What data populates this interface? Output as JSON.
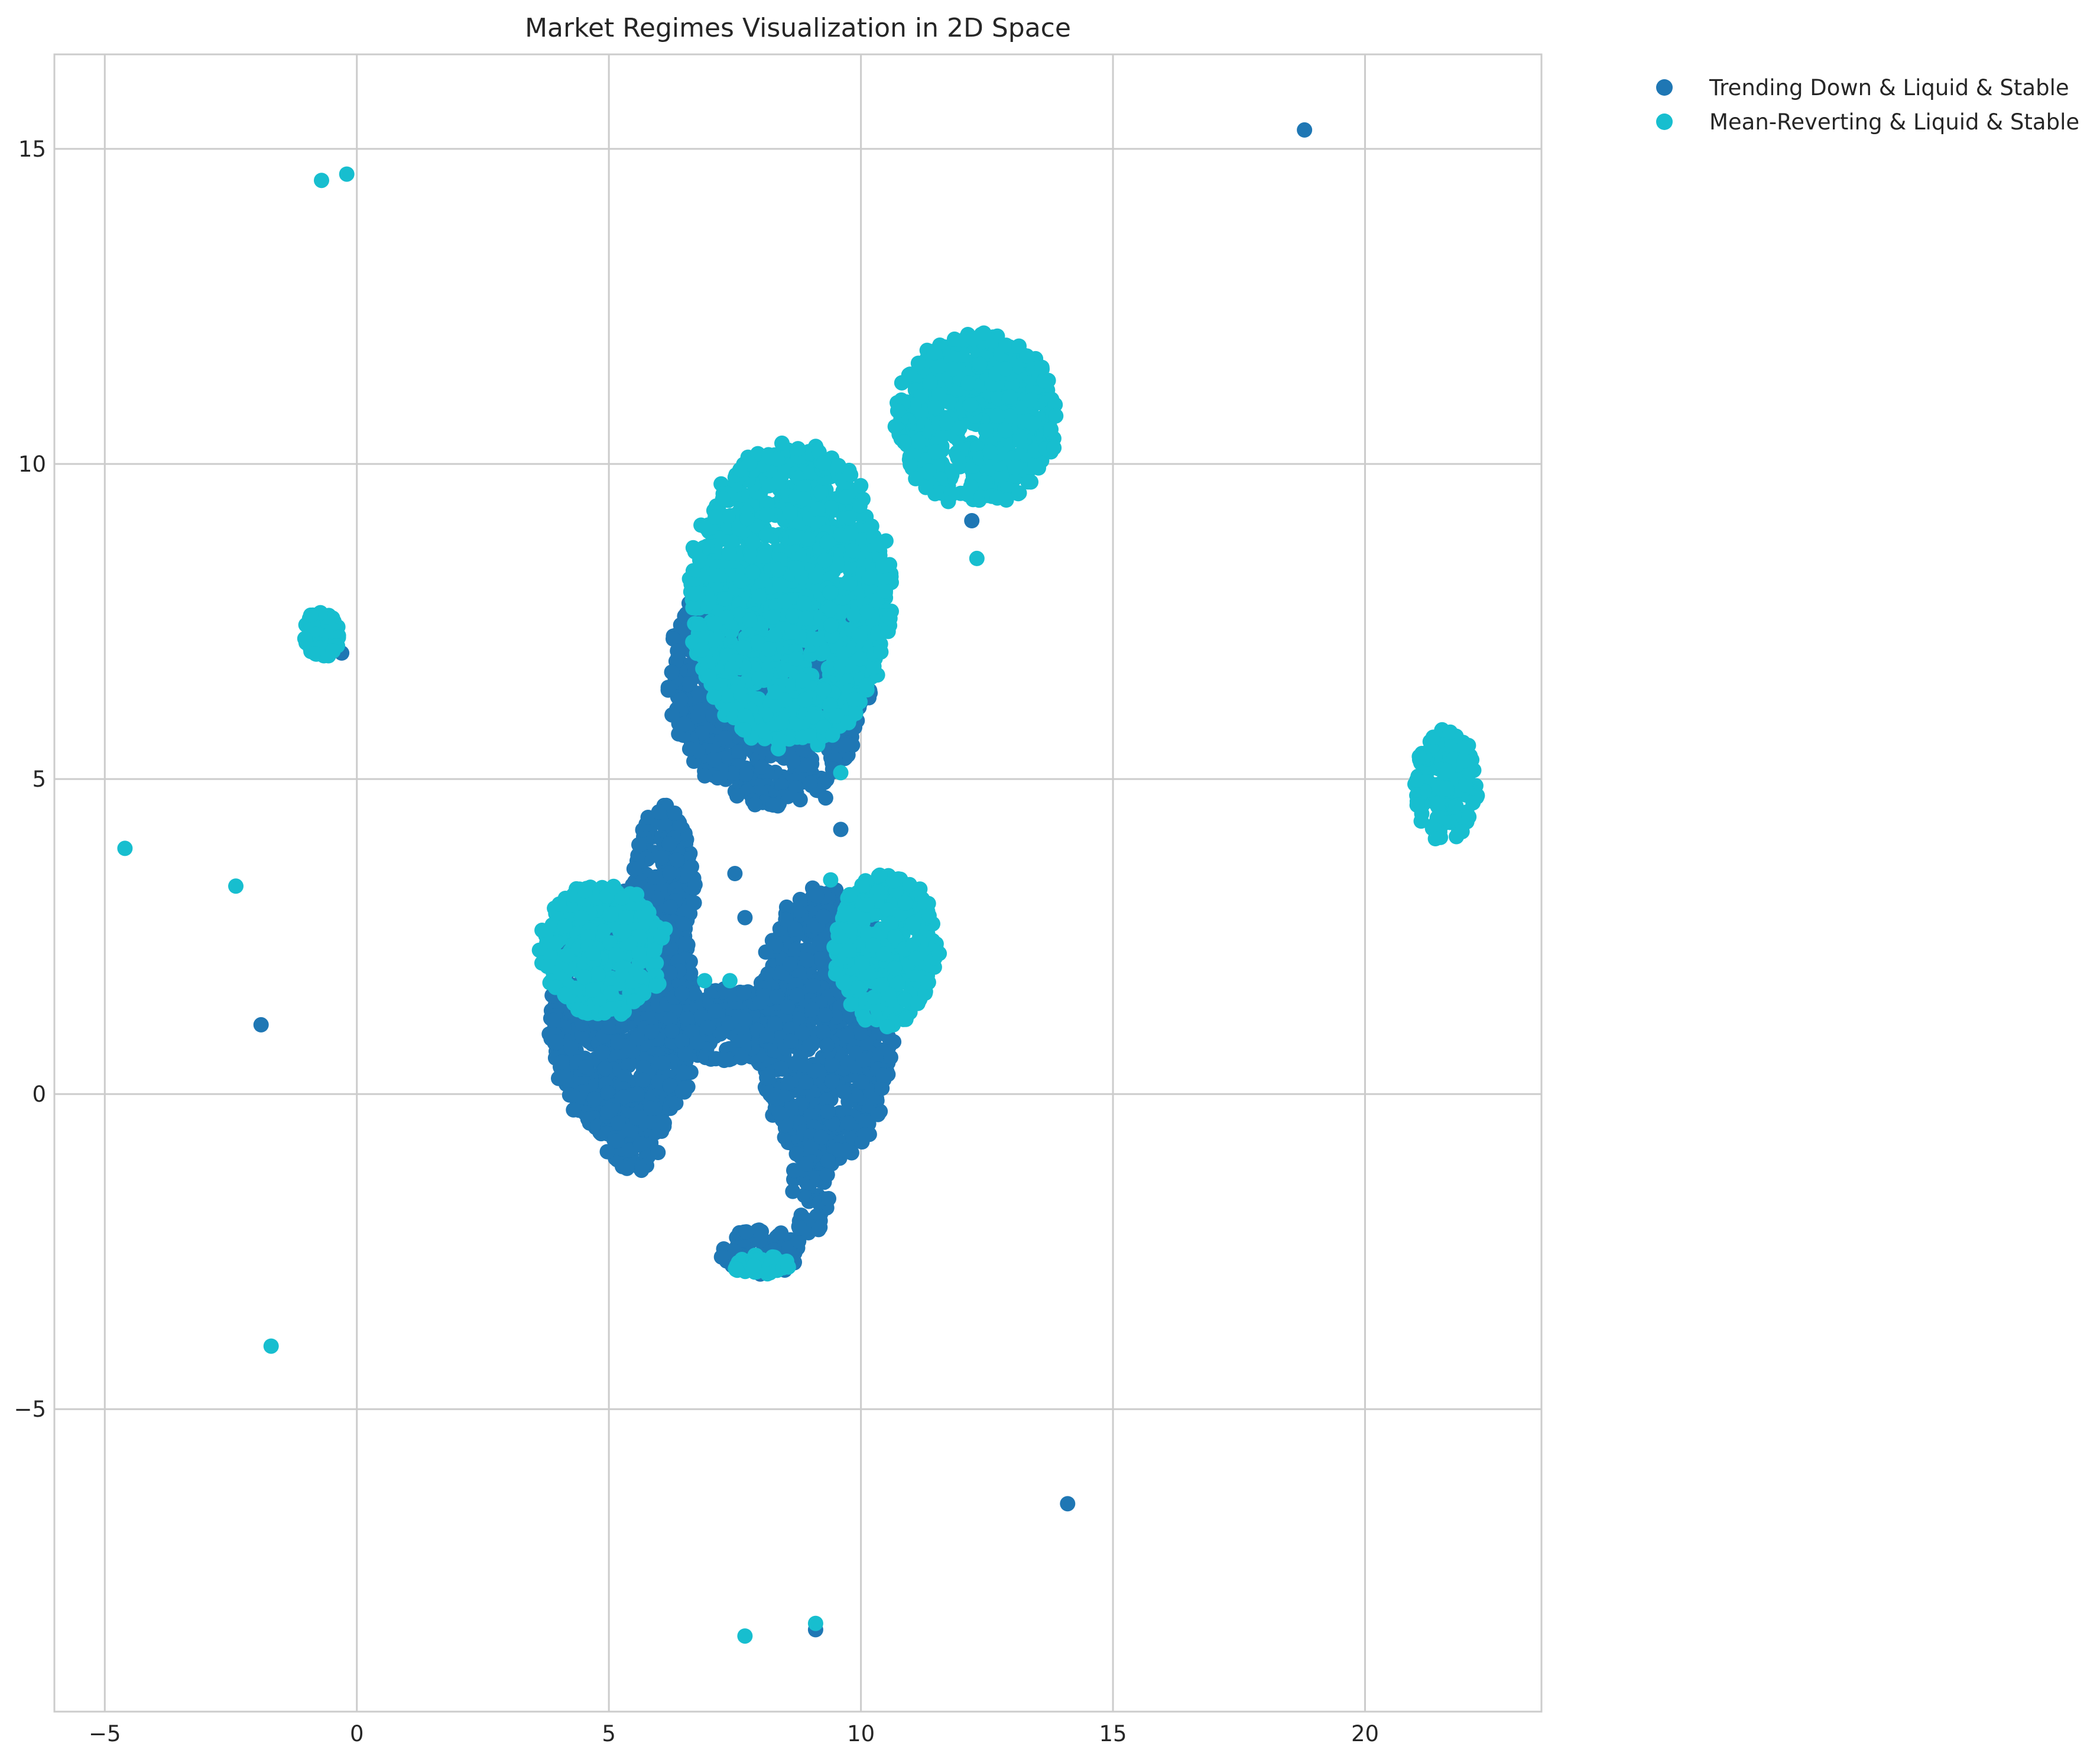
{
  "chart_data": {
    "type": "scatter",
    "title": "Market Regimes Visualization in 2D Space",
    "xlabel": "",
    "ylabel": "",
    "xlim": [
      -6,
      23.5
    ],
    "ylim": [
      -9.8,
      16.5
    ],
    "x_ticks": [
      -5,
      0,
      5,
      10,
      15,
      20
    ],
    "y_ticks": [
      -5,
      0,
      5,
      10,
      15
    ],
    "x_tick_labels": [
      "−5",
      "0",
      "5",
      "10",
      "15",
      "20"
    ],
    "y_tick_labels": [
      "−5",
      "0",
      "5",
      "10",
      "15"
    ],
    "grid": true,
    "legend_position": "outside top-right",
    "series": [
      {
        "name": "Trending Down & Liquid & Stable",
        "color": "#1f77b4",
        "clusters": [
          {
            "cx": 8.2,
            "cy": 6.6,
            "rx": 1.9,
            "ry": 1.9
          },
          {
            "cx": 5.3,
            "cy": 1.2,
            "rx": 1.4,
            "ry": 1.9
          },
          {
            "cx": 9.3,
            "cy": 1.1,
            "rx": 1.3,
            "ry": 2.1
          },
          {
            "cx": 7.3,
            "cy": 1.1,
            "rx": 1.5,
            "ry": 0.55
          },
          {
            "cx": 6.1,
            "cy": 3.2,
            "rx": 0.6,
            "ry": 1.3
          },
          {
            "cx": 8.0,
            "cy": -2.5,
            "rx": 0.8,
            "ry": 0.35
          },
          {
            "cx": 9.0,
            "cy": -1.4,
            "rx": 0.35,
            "ry": 0.9
          },
          {
            "cx": 5.5,
            "cy": -0.6,
            "rx": 0.6,
            "ry": 0.6
          }
        ],
        "points": [
          {
            "x": 18.8,
            "y": 15.3
          },
          {
            "x": 14.1,
            "y": -6.5
          },
          {
            "x": -1.9,
            "y": 1.1
          },
          {
            "x": -0.3,
            "y": 7.0
          },
          {
            "x": 9.3,
            "y": 4.7
          },
          {
            "x": 9.6,
            "y": 4.2
          },
          {
            "x": 9.1,
            "y": -8.5
          },
          {
            "x": 7.7,
            "y": 2.8
          },
          {
            "x": 12.2,
            "y": 9.1
          },
          {
            "x": 7.5,
            "y": 3.5
          }
        ]
      },
      {
        "name": "Mean-Reverting & Liquid & Stable",
        "color": "#17becf",
        "clusters": [
          {
            "cx": 8.6,
            "cy": 7.9,
            "rx": 1.9,
            "ry": 2.3
          },
          {
            "cx": 12.3,
            "cy": 10.7,
            "rx": 1.55,
            "ry": 1.3
          },
          {
            "cx": 21.6,
            "cy": 4.9,
            "rx": 0.6,
            "ry": 0.85
          },
          {
            "cx": 4.9,
            "cy": 2.3,
            "rx": 1.2,
            "ry": 1.0
          },
          {
            "cx": 10.5,
            "cy": 2.3,
            "rx": 1.0,
            "ry": 1.15
          },
          {
            "cx": -0.7,
            "cy": 7.3,
            "rx": 0.35,
            "ry": 0.35
          },
          {
            "cx": 8.0,
            "cy": -2.7,
            "rx": 0.55,
            "ry": 0.15
          }
        ],
        "points": [
          {
            "x": -0.7,
            "y": 14.5
          },
          {
            "x": -0.2,
            "y": 14.6
          },
          {
            "x": -4.6,
            "y": 3.9
          },
          {
            "x": -2.4,
            "y": 3.3
          },
          {
            "x": -1.7,
            "y": -4.0
          },
          {
            "x": 7.7,
            "y": -8.6
          },
          {
            "x": 9.1,
            "y": -8.4
          },
          {
            "x": 12.3,
            "y": 8.5
          },
          {
            "x": 9.6,
            "y": 5.1
          },
          {
            "x": 7.4,
            "y": 1.8
          },
          {
            "x": 6.9,
            "y": 1.8
          },
          {
            "x": 9.4,
            "y": 3.4
          }
        ]
      }
    ]
  }
}
